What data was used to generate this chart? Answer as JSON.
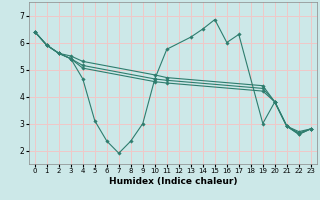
{
  "xlabel": "Humidex (Indice chaleur)",
  "bg_color": "#cce8e8",
  "grid_color": "#f0c8c8",
  "line_color": "#2e7d6e",
  "marker_color": "#2e7d6e",
  "xlim": [
    -0.5,
    23.5
  ],
  "ylim": [
    1.5,
    7.5
  ],
  "xticks": [
    0,
    1,
    2,
    3,
    4,
    5,
    6,
    7,
    8,
    9,
    10,
    11,
    12,
    13,
    14,
    15,
    16,
    17,
    18,
    19,
    20,
    21,
    22,
    23
  ],
  "yticks": [
    2,
    3,
    4,
    5,
    6,
    7
  ],
  "lines": [
    {
      "x": [
        0,
        1,
        2,
        3,
        4,
        10,
        11,
        19,
        20,
        21,
        22,
        23
      ],
      "y": [
        6.4,
        5.9,
        5.6,
        5.5,
        5.3,
        4.8,
        4.7,
        4.4,
        3.8,
        2.9,
        2.7,
        2.8
      ]
    },
    {
      "x": [
        0,
        1,
        2,
        3,
        4,
        10,
        11,
        19,
        20,
        21,
        22,
        23
      ],
      "y": [
        6.4,
        5.9,
        5.6,
        5.4,
        5.15,
        4.65,
        4.6,
        4.3,
        3.8,
        2.9,
        2.65,
        2.8
      ]
    },
    {
      "x": [
        0,
        1,
        2,
        3,
        4,
        10,
        11,
        19,
        20,
        21,
        22,
        23
      ],
      "y": [
        6.4,
        5.9,
        5.6,
        5.4,
        5.05,
        4.55,
        4.5,
        4.2,
        3.8,
        2.9,
        2.6,
        2.8
      ]
    },
    {
      "x": [
        0,
        1,
        2,
        3,
        4,
        5,
        6,
        7,
        8,
        9,
        10,
        11,
        13,
        14,
        15,
        16,
        17,
        19,
        20,
        21,
        22,
        23
      ],
      "y": [
        6.4,
        5.9,
        5.6,
        5.4,
        4.65,
        3.1,
        2.35,
        1.9,
        2.35,
        3.0,
        4.65,
        5.75,
        6.2,
        6.5,
        6.85,
        6.0,
        6.3,
        3.0,
        3.8,
        2.9,
        2.6,
        2.8
      ]
    }
  ]
}
